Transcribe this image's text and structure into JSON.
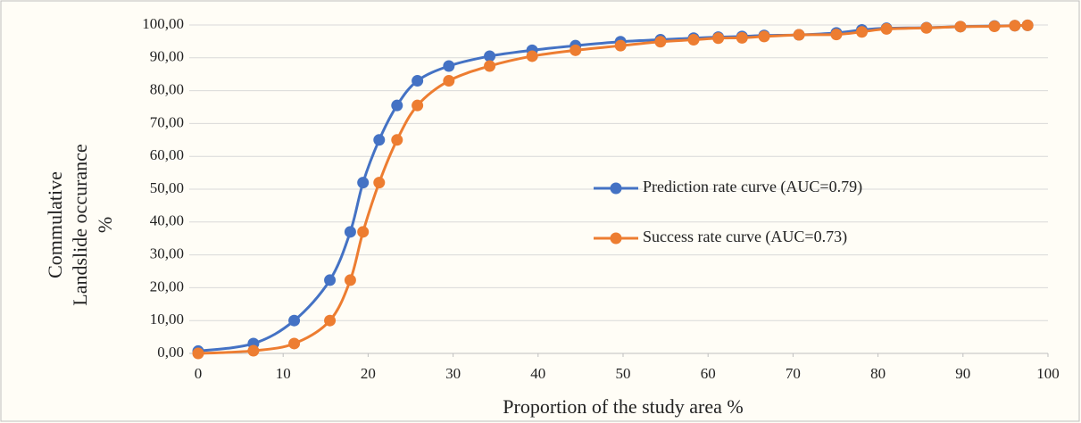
{
  "chart_data": {
    "type": "line",
    "x_label": "Proportion of the study area %",
    "y_label": "Commulative Landslide occurance %",
    "x": [
      0,
      6.5,
      11.3,
      15.5,
      17.9,
      19.4,
      21.3,
      23.4,
      25.8,
      29.5,
      34.3,
      39.3,
      44.4,
      49.7,
      54.4,
      58.3,
      61.2,
      64,
      66.6,
      70.7,
      75.1,
      78.1,
      81,
      85.7,
      89.7,
      93.7,
      96.1,
      97.6
    ],
    "series": [
      {
        "name": "Prediction rate curve (AUC=0.79)",
        "color": "#4472c4",
        "values": [
          0.7,
          3,
          10,
          22.3,
          37,
          52,
          65,
          75.5,
          83,
          87.5,
          90.5,
          92.3,
          93.7,
          94.9,
          95.5,
          96,
          96.3,
          96.5,
          96.8,
          97,
          97.6,
          98.5,
          99,
          99.2,
          99.5,
          99.7,
          99.8,
          99.9
        ]
      },
      {
        "name": "Success rate curve (AUC=0.73)",
        "color": "#ed7d31",
        "values": [
          0,
          0.8,
          3,
          10,
          22.3,
          37,
          52,
          65,
          75.5,
          83,
          87.5,
          90.5,
          92.3,
          93.7,
          94.9,
          95.5,
          96,
          96.1,
          96.5,
          97,
          97.1,
          97.9,
          98.8,
          99.1,
          99.5,
          99.6,
          99.8,
          99.9
        ]
      }
    ],
    "xlim": [
      0,
      100
    ],
    "xticks": [
      0,
      10,
      20,
      30,
      40,
      50,
      60,
      70,
      80,
      90,
      100
    ],
    "ylim": [
      0,
      100
    ],
    "yticks": [
      {
        "value": 0,
        "label": "0,00"
      },
      {
        "value": 10,
        "label": "10,00"
      },
      {
        "value": 20,
        "label": "20,00"
      },
      {
        "value": 30,
        "label": "30,00"
      },
      {
        "value": 40,
        "label": "40,00"
      },
      {
        "value": 50,
        "label": "50,00"
      },
      {
        "value": 60,
        "label": "60,00"
      },
      {
        "value": 70,
        "label": "70,00"
      },
      {
        "value": 80,
        "label": "80,00"
      },
      {
        "value": 90,
        "label": "90,00"
      },
      {
        "value": 100,
        "label": "100,00"
      }
    ],
    "grid": true
  }
}
